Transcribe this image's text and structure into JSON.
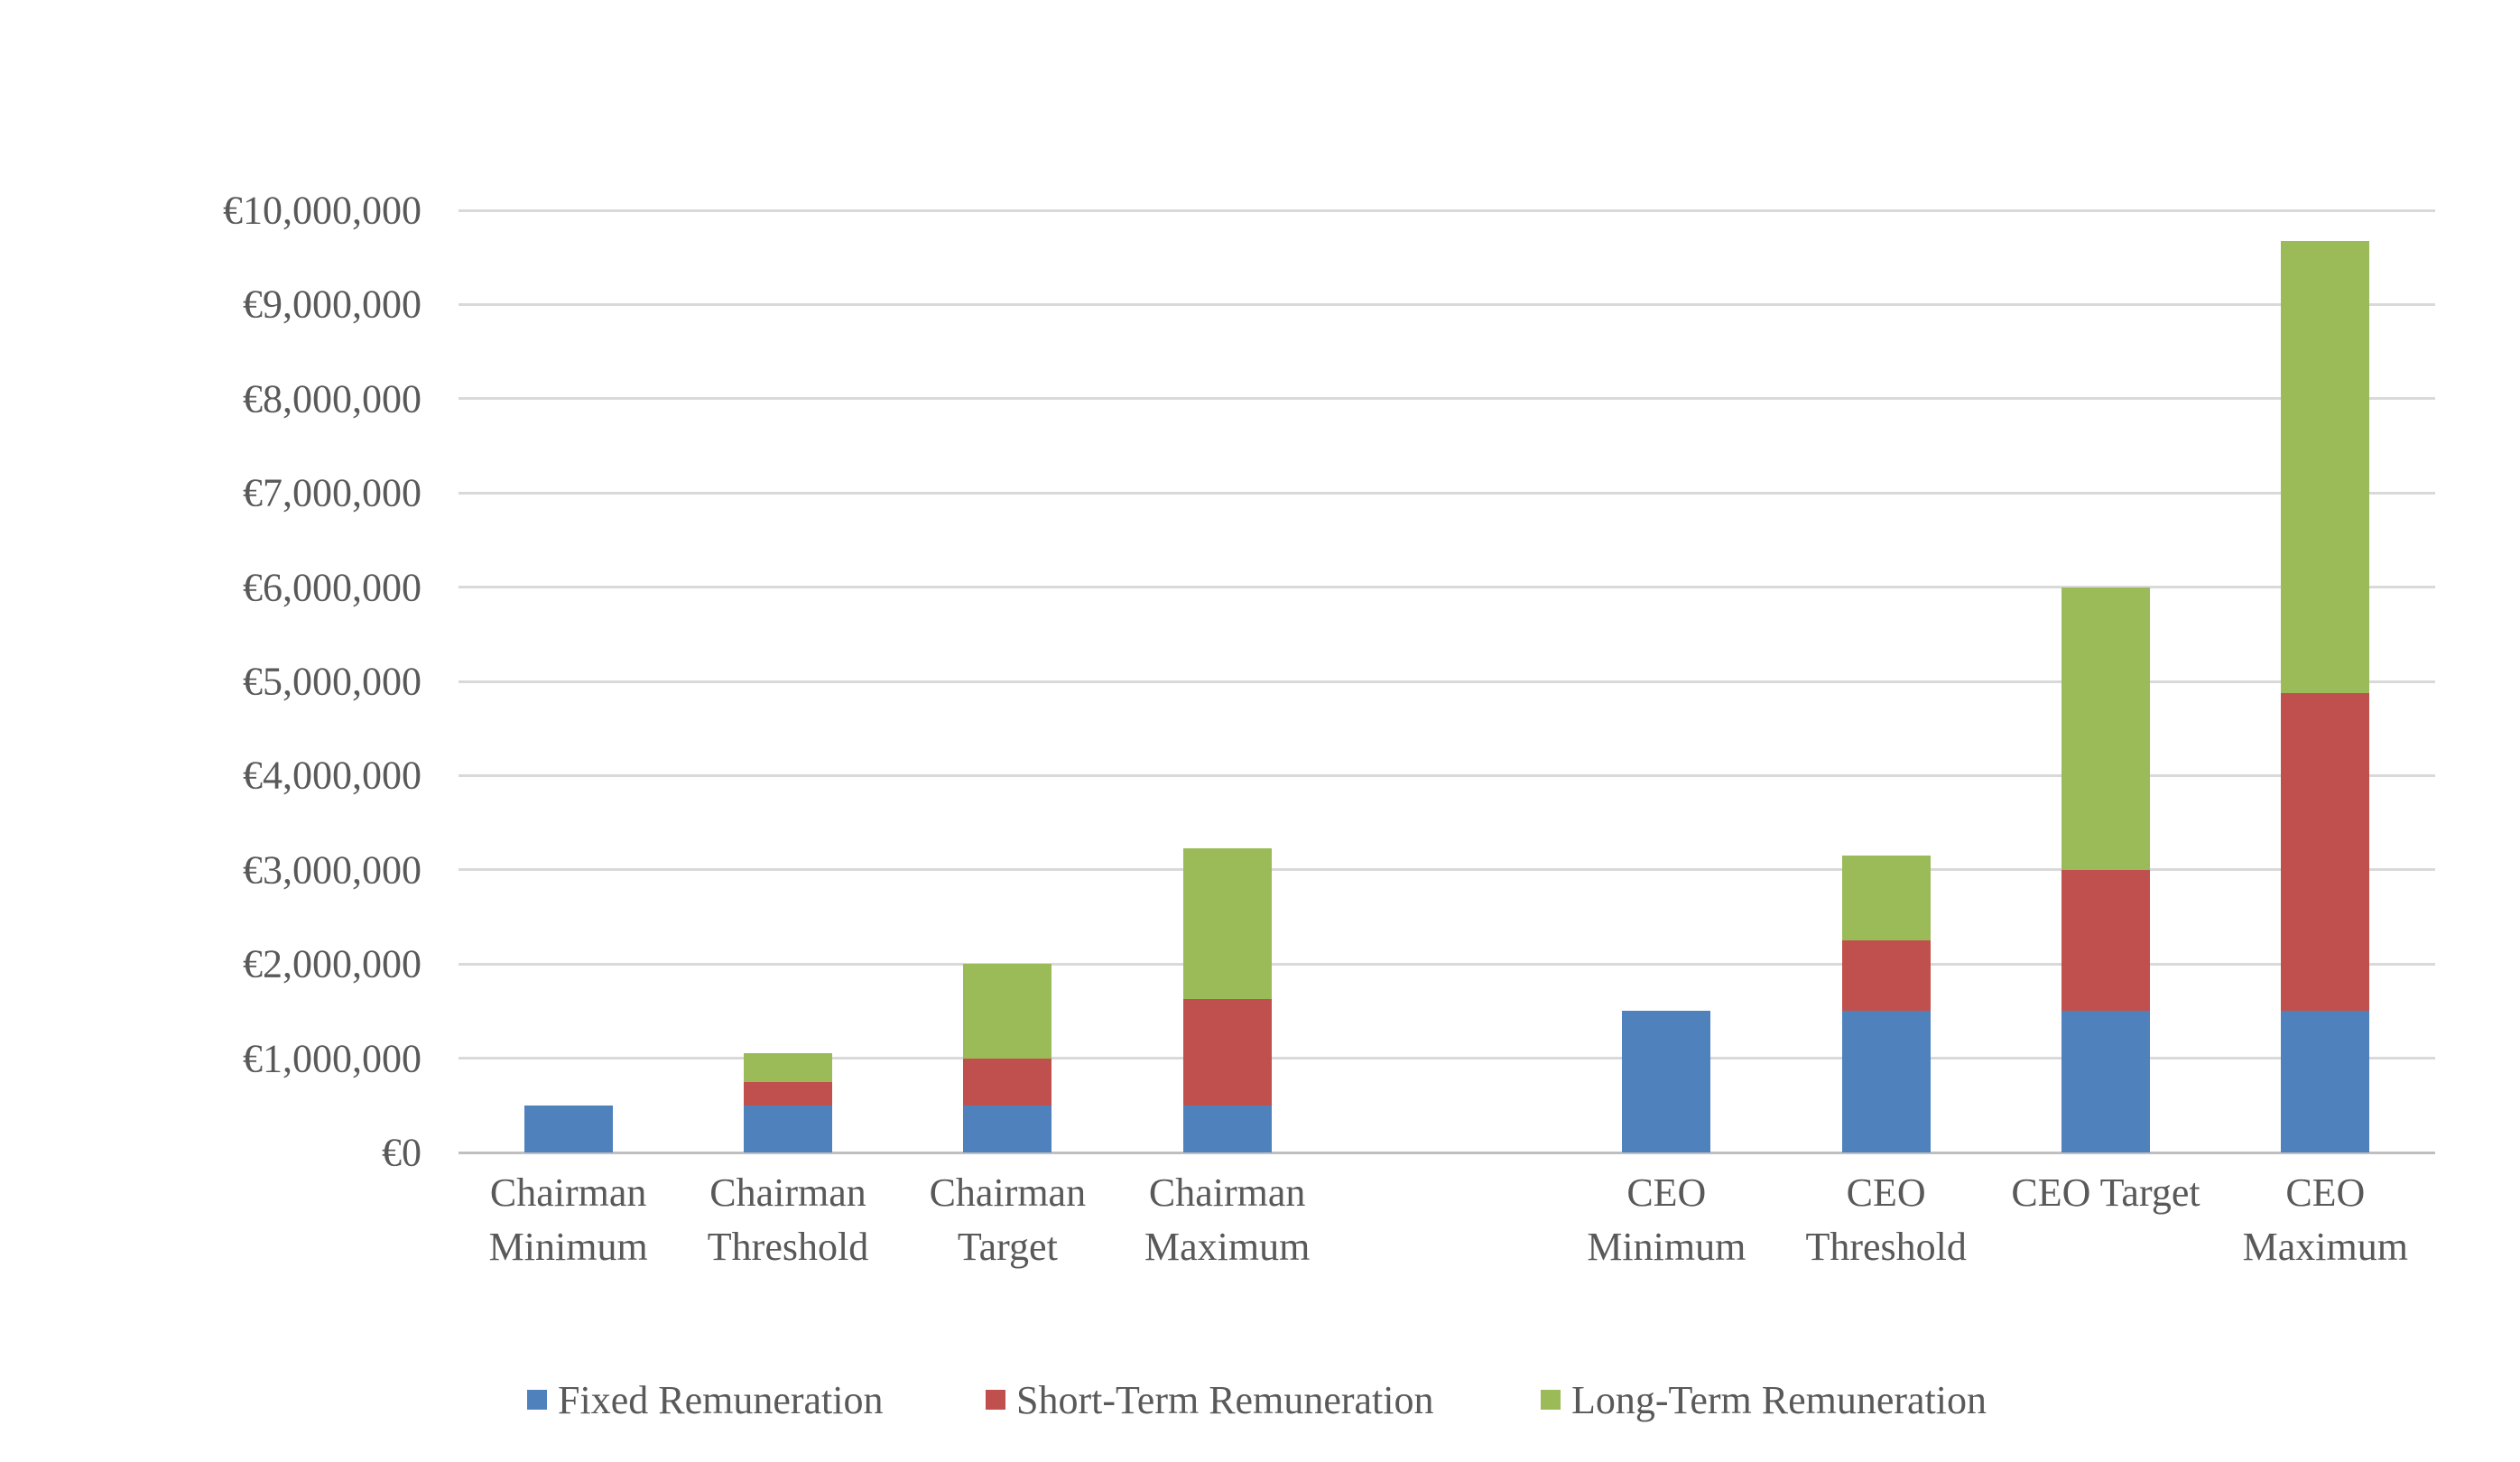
{
  "chart_data": {
    "type": "bar",
    "stacked": true,
    "title": "",
    "currency_prefix": "€",
    "categories": [
      "Chairman Minimum",
      "Chairman Threshold",
      "Chairman Target",
      "Chairman Maximum",
      "CEO Minimum",
      "CEO Threshold",
      "CEO Target",
      "CEO Maximum"
    ],
    "group_gap_after_index": 3,
    "series": [
      {
        "name": "Fixed Remuneration",
        "color": "#4F81BD",
        "values": [
          500000,
          500000,
          500000,
          500000,
          1500000,
          1500000,
          1500000,
          1500000
        ]
      },
      {
        "name": "Short-Term Remuneration",
        "color": "#C0504D",
        "values": [
          0,
          250000,
          500000,
          1125000,
          0,
          750000,
          1500000,
          3375000
        ]
      },
      {
        "name": "Long-Term Remuneration",
        "color": "#9BBB59",
        "values": [
          0,
          300000,
          1000000,
          1600000,
          0,
          900000,
          3000000,
          4800000
        ]
      }
    ],
    "stack_totals": [
      500000,
      1050000,
      2000000,
      3225000,
      1500000,
      3150000,
      6000000,
      9675000
    ],
    "y_axis": {
      "min": 0,
      "max": 10000000,
      "step": 1000000,
      "tick_labels": [
        "€0",
        "€1,000,000",
        "€2,000,000",
        "€3,000,000",
        "€4,000,000",
        "€5,000,000",
        "€6,000,000",
        "€7,000,000",
        "€8,000,000",
        "€9,000,000",
        "€10,000,000"
      ]
    },
    "legend": {
      "position": "bottom",
      "entries": [
        "Fixed Remuneration",
        "Short-Term Remuneration",
        "Long-Term Remuneration"
      ]
    },
    "grid": true
  },
  "style": {
    "grid_color": "#D9D9D9",
    "axis_line_color": "#BFBFBF",
    "text_color": "#595959",
    "background": "#FFFFFF"
  }
}
